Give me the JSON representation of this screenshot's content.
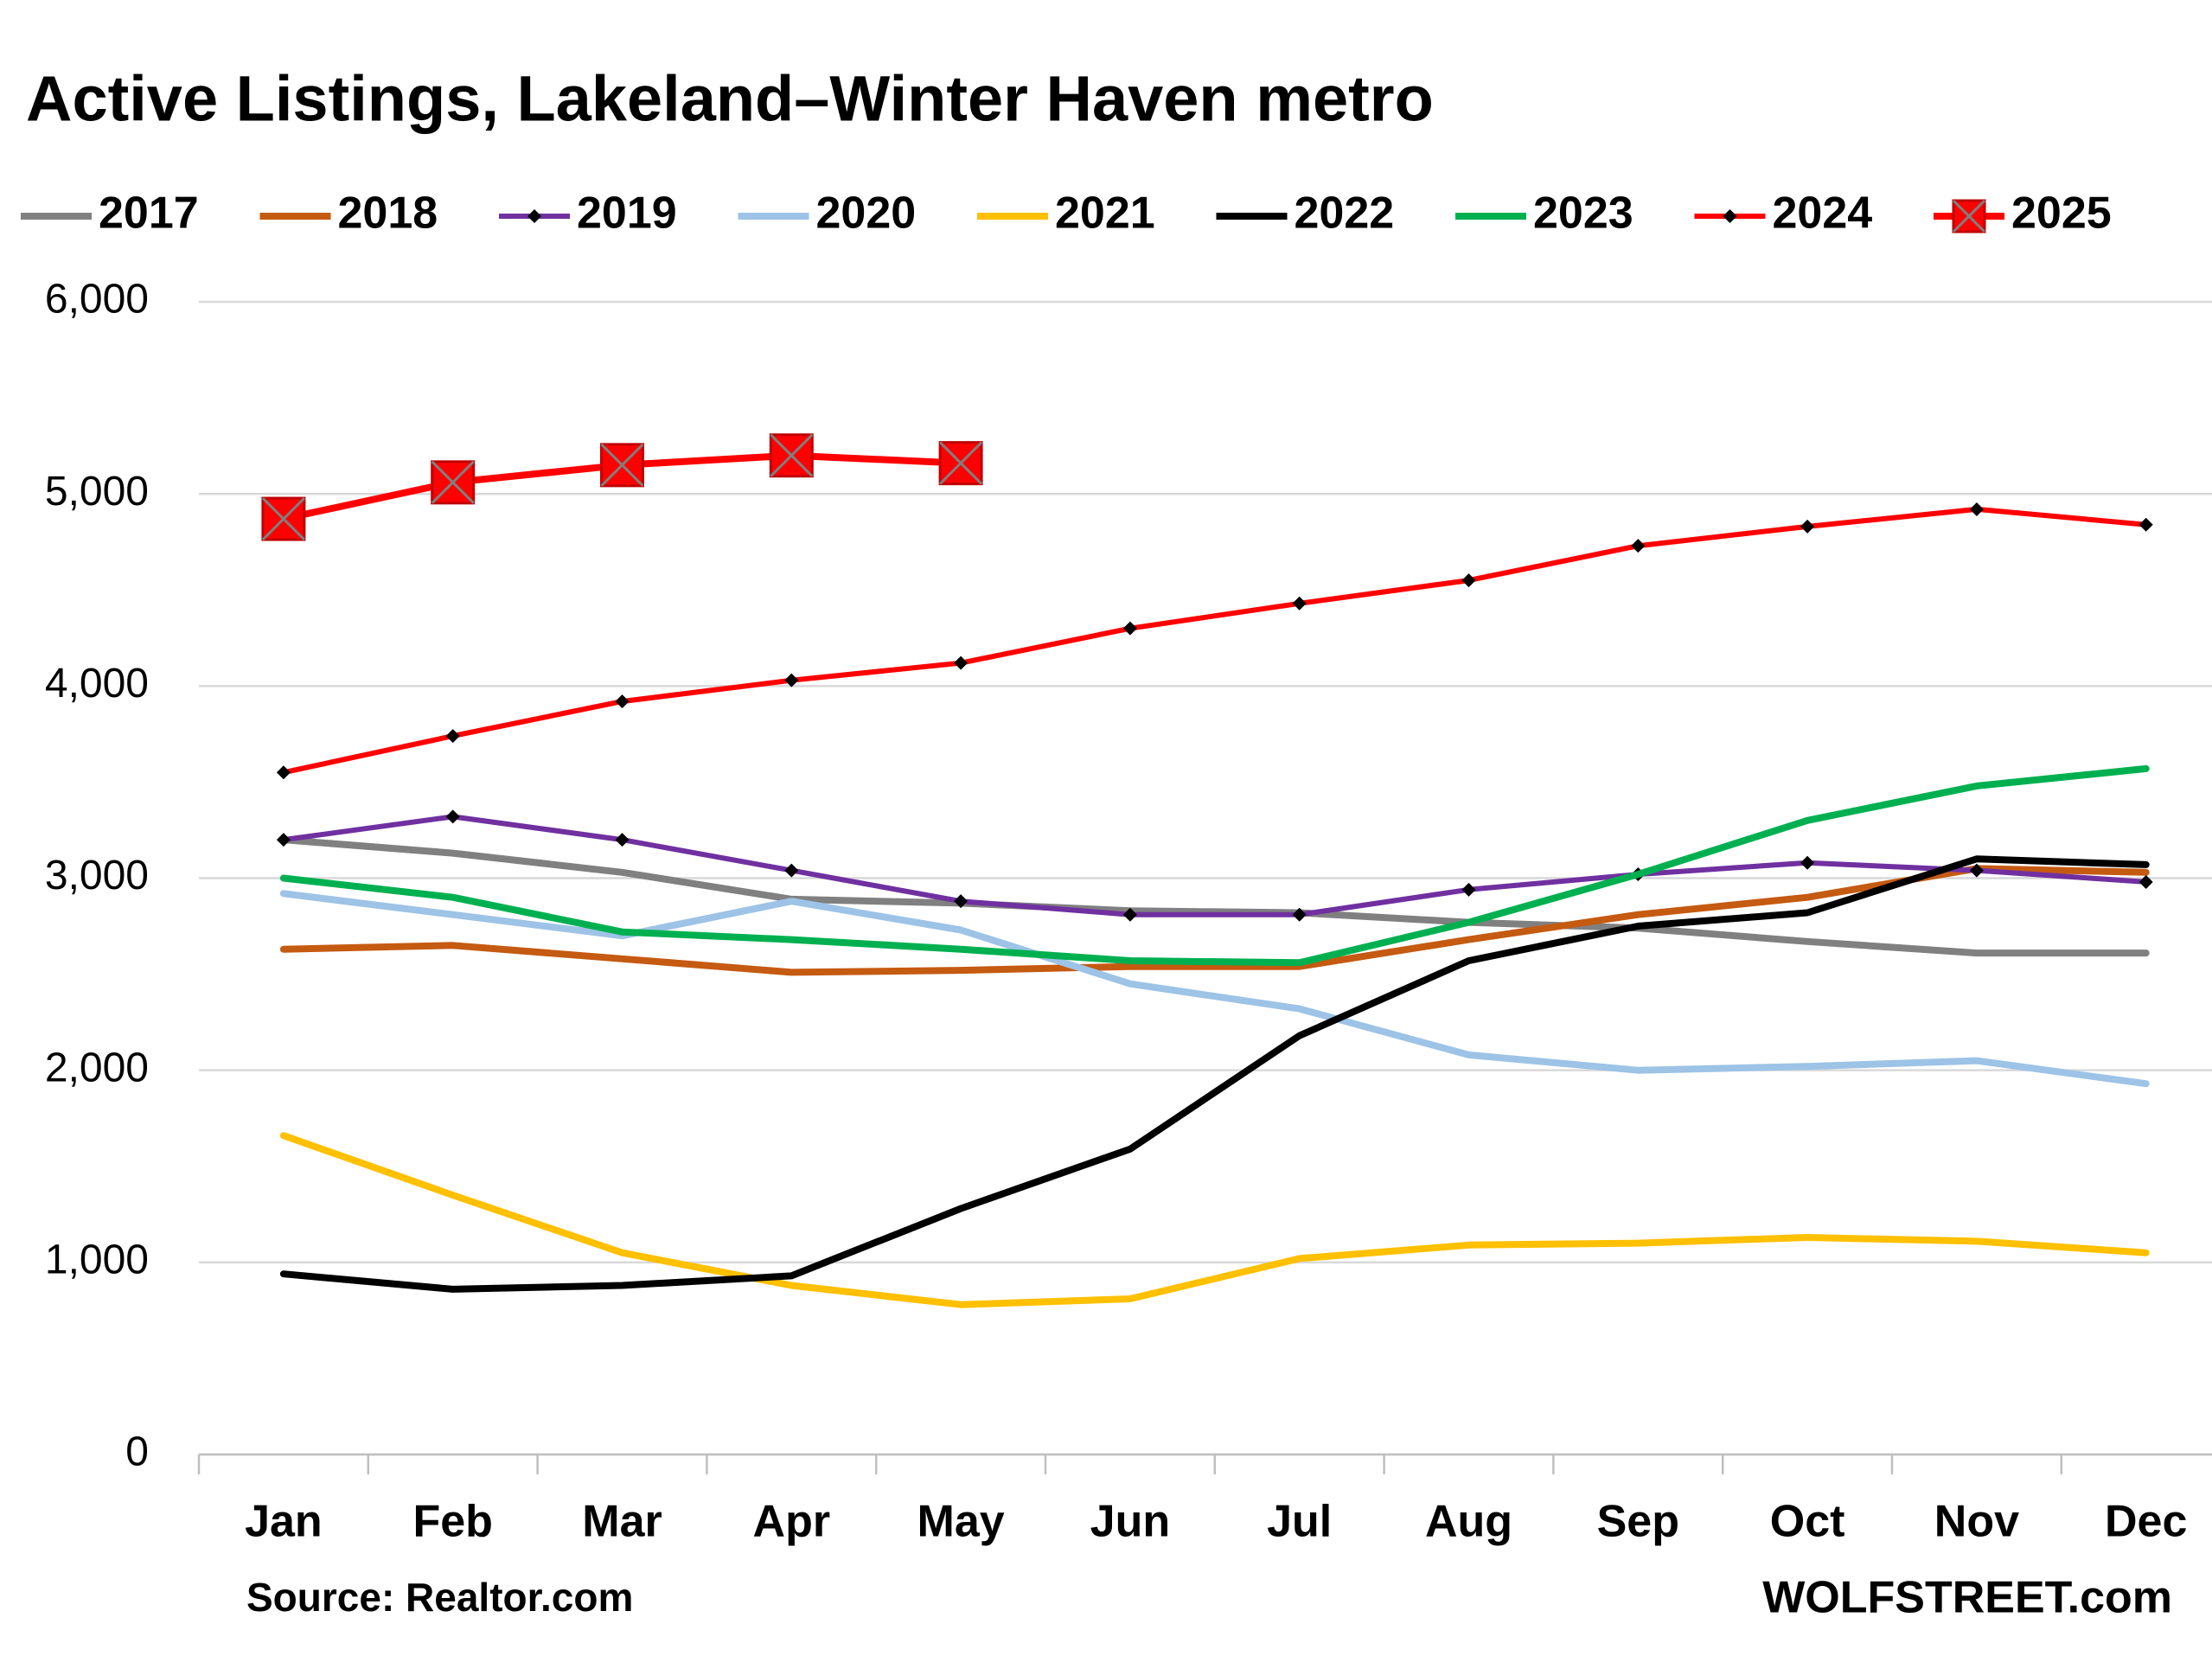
{
  "chart_data": {
    "type": "line",
    "title": "Active Listings, Lakeland–Winter Haven metro",
    "source": "Source: Realtor.com",
    "credit": "WOLFSTREET.com",
    "categories": [
      "Jan",
      "Feb",
      "Mar",
      "Apr",
      "May",
      "Jun",
      "Jul",
      "Aug",
      "Sep",
      "Oct",
      "Nov",
      "Dec"
    ],
    "ylim": [
      0,
      6000
    ],
    "yticks": [
      {
        "value": 0,
        "label": "0"
      },
      {
        "value": 1000,
        "label": "1,000"
      },
      {
        "value": 2000,
        "label": "2,000"
      },
      {
        "value": 3000,
        "label": "3,000"
      },
      {
        "value": 4000,
        "label": "4,000"
      },
      {
        "value": 5000,
        "label": "5,000"
      },
      {
        "value": 6000,
        "label": "6,000"
      }
    ],
    "grid": true,
    "legend": "top",
    "series": [
      {
        "name": "2017",
        "color": "#808080",
        "values": [
          3200,
          3130,
          3030,
          2890,
          2870,
          2830,
          2820,
          2770,
          2740,
          2670,
          2610,
          2610
        ]
      },
      {
        "name": "2018",
        "color": "#c55a11",
        "values": [
          2630,
          2650,
          2580,
          2510,
          2520,
          2540,
          2540,
          2680,
          2810,
          2900,
          3050,
          3030
        ]
      },
      {
        "name": "2019",
        "color": "#7030a0",
        "marker": "diamond",
        "values": [
          3200,
          3320,
          3200,
          3040,
          2880,
          2810,
          2810,
          2940,
          3020,
          3080,
          3040,
          2980
        ]
      },
      {
        "name": "2020",
        "color": "#9dc3e6",
        "values": [
          2920,
          2810,
          2700,
          2880,
          2730,
          2450,
          2320,
          2080,
          2000,
          2020,
          2050,
          1930
        ]
      },
      {
        "name": "2021",
        "color": "#ffc000",
        "values": [
          1660,
          1350,
          1050,
          880,
          780,
          810,
          1020,
          1090,
          1100,
          1130,
          1110,
          1050
        ]
      },
      {
        "name": "2022",
        "color": "#000000",
        "values": [
          940,
          860,
          880,
          930,
          1280,
          1590,
          2180,
          2570,
          2750,
          2820,
          3100,
          3070
        ]
      },
      {
        "name": "2023",
        "color": "#00b050",
        "values": [
          3000,
          2900,
          2720,
          2680,
          2630,
          2570,
          2560,
          2770,
          3020,
          3300,
          3480,
          3570
        ]
      },
      {
        "name": "2024",
        "color": "#ff0000",
        "marker": "diamond",
        "values": [
          3550,
          3740,
          3920,
          4030,
          4120,
          4300,
          4430,
          4550,
          4730,
          4830,
          4920,
          4840
        ]
      },
      {
        "name": "2025",
        "color": "#ff0000",
        "marker": "square",
        "values": [
          4870,
          5060,
          5150,
          5200,
          5160,
          null,
          null,
          null,
          null,
          null,
          null,
          null
        ]
      }
    ]
  }
}
